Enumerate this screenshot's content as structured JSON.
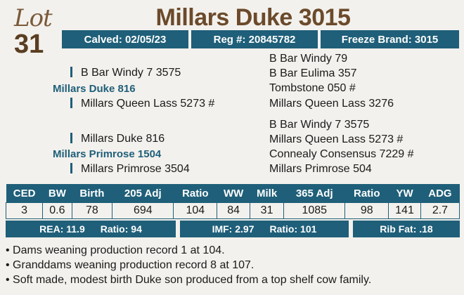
{
  "lot": {
    "word": "Lot",
    "number": "31"
  },
  "title": "Millars Duke 3015",
  "info": {
    "calved": "Calved: 02/05/23",
    "reg": "Reg #: 20845782",
    "brand": "Freeze Brand: 3015"
  },
  "pedigree": {
    "sire": "Millars Duke 816",
    "sire_sire": "B Bar Windy 7 3575",
    "sire_dam": "Millars Queen Lass 5273 #",
    "sss": "B Bar Windy 79",
    "ssd": "B Bar Eulima 357",
    "sds": "Tombstone 050 #",
    "sdd": "Millars Queen Lass 3276",
    "dam": "Millars Primrose 1504",
    "dam_sire": "Millars Duke 816",
    "dam_dam": "Millars Primrose 3504",
    "dss": "B Bar Windy 7 3575",
    "dsd": "Millars Queen Lass 5273 #",
    "dds": "Connealy Consensus 7229 #",
    "ddd": "Millars Primrose 504"
  },
  "stats": {
    "headers": [
      "CED",
      "BW",
      "Birth",
      "205 Adj",
      "Ratio",
      "WW",
      "Milk",
      "365 Adj",
      "Ratio",
      "YW",
      "ADG"
    ],
    "values": [
      "3",
      "0.6",
      "78",
      "694",
      "104",
      "84",
      "31",
      "1085",
      "98",
      "141",
      "2.7"
    ]
  },
  "carcass": {
    "rea": "REA: 11.9",
    "rea_ratio": "Ratio: 94",
    "imf": "IMF: 2.97",
    "imf_ratio": "Ratio: 101",
    "rib": "Rib Fat: .18"
  },
  "notes": [
    "Dams weaning production record 1 at 104.",
    "Granddams weaning production record 8 at 107.",
    "Soft made, modest birth Duke son produced from a top shelf cow family."
  ]
}
